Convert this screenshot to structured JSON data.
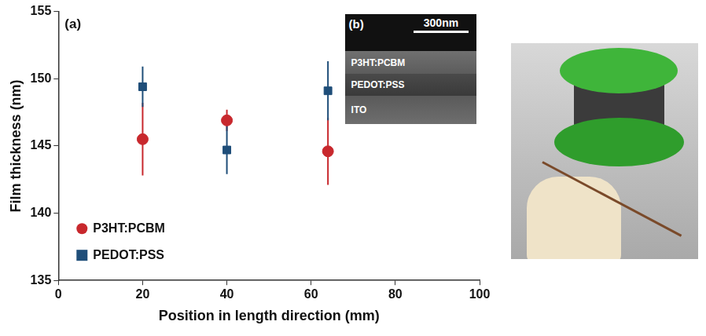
{
  "chart_data": {
    "type": "scatter",
    "panel_label": "(a)",
    "x_label": "Position in length direction (mm)",
    "y_label": "Film thickness (nm)",
    "xlim": [
      0,
      100
    ],
    "xticks": [
      0,
      20,
      40,
      60,
      80,
      100
    ],
    "ylim": [
      135,
      155
    ],
    "yticks": [
      135,
      140,
      145,
      150,
      155
    ],
    "grid": false,
    "legend": "lower left",
    "series": [
      {
        "name": "P3HT:PCBM",
        "color": "#c8282d",
        "marker": "circle",
        "x": [
          20,
          40,
          64
        ],
        "values": [
          145.5,
          146.9,
          144.6
        ],
        "error": [
          2.7,
          0.8,
          2.5
        ]
      },
      {
        "name": "PEDOT:PSS",
        "color": "#1f4e79",
        "marker": "square",
        "x": [
          20,
          40,
          64
        ],
        "values": [
          149.4,
          144.7,
          149.1
        ],
        "error": [
          1.5,
          1.8,
          2.2
        ]
      }
    ],
    "inset": {
      "label": "(b)",
      "scale_bar": "300nm",
      "layers": [
        "P3HT:PCBM",
        "PEDOT:PSS",
        "ITO"
      ]
    }
  }
}
